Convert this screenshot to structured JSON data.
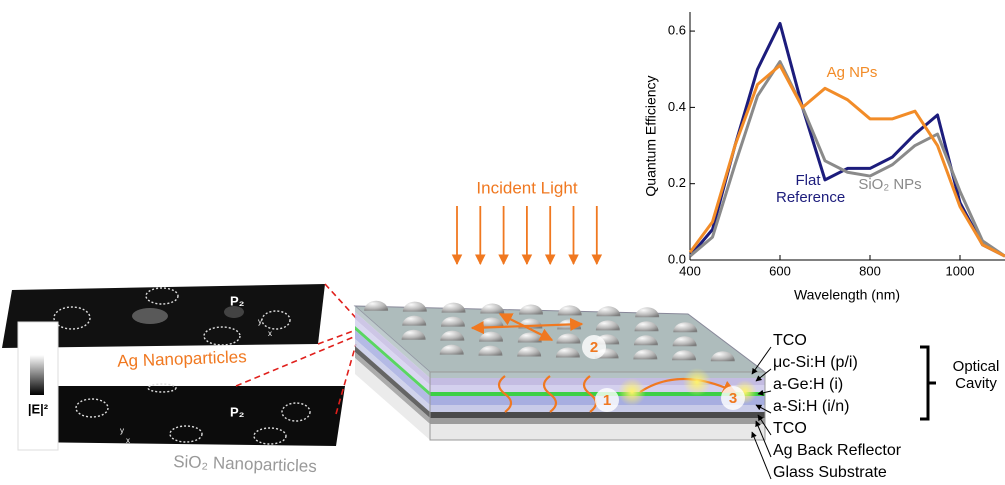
{
  "chart_data": {
    "type": "line",
    "xlabel": "Wavelength (nm)",
    "ylabel": "Quantum Efficiency",
    "x": [
      400,
      450,
      500,
      550,
      600,
      650,
      700,
      750,
      800,
      850,
      900,
      950,
      1000,
      1050,
      1100
    ],
    "series": [
      {
        "name": "Flat Reference",
        "color": "#1c1c7c",
        "values": [
          0.01,
          0.08,
          0.3,
          0.5,
          0.62,
          0.4,
          0.21,
          0.24,
          0.24,
          0.27,
          0.33,
          0.38,
          0.15,
          0.04,
          0.01
        ]
      },
      {
        "name": "SiO₂ NPs",
        "color": "#8a8a8a",
        "values": [
          0.01,
          0.06,
          0.25,
          0.43,
          0.52,
          0.4,
          0.26,
          0.23,
          0.22,
          0.25,
          0.3,
          0.33,
          0.18,
          0.05,
          0.01
        ]
      },
      {
        "name": "Ag NPs",
        "color": "#f28c28",
        "values": [
          0.02,
          0.1,
          0.3,
          0.46,
          0.51,
          0.4,
          0.45,
          0.42,
          0.37,
          0.37,
          0.39,
          0.3,
          0.14,
          0.04,
          0.01
        ]
      }
    ],
    "xlim": [
      400,
      1100
    ],
    "xticks": [
      400,
      600,
      800,
      1000
    ],
    "ylim": [
      0,
      0.65
    ],
    "yticks": [
      {
        "value": 0,
        "label": "0.0"
      },
      0.2,
      0.4,
      0.6
    ]
  },
  "diagram": {
    "incident_light": "Incident Light",
    "field_maps": [
      {
        "name": "Ag Nanoparticles",
        "marker": "P₂",
        "axes": [
          "y",
          "x"
        ]
      },
      {
        "name": "SiO₂ Nanoparticles",
        "marker": "P₂",
        "axes": [
          "y",
          "x"
        ]
      }
    ],
    "colorbar_label": "|E|²",
    "mechanisms": [
      "1",
      "2",
      "3"
    ],
    "layers": [
      "TCO",
      "μc-Si:H (p/i)",
      "a-Ge:H (i)",
      "a-Si:H (i/n)",
      "TCO",
      "Ag Back Reflector",
      "Glass Substrate"
    ],
    "cavity_label": "Optical Cavity"
  }
}
